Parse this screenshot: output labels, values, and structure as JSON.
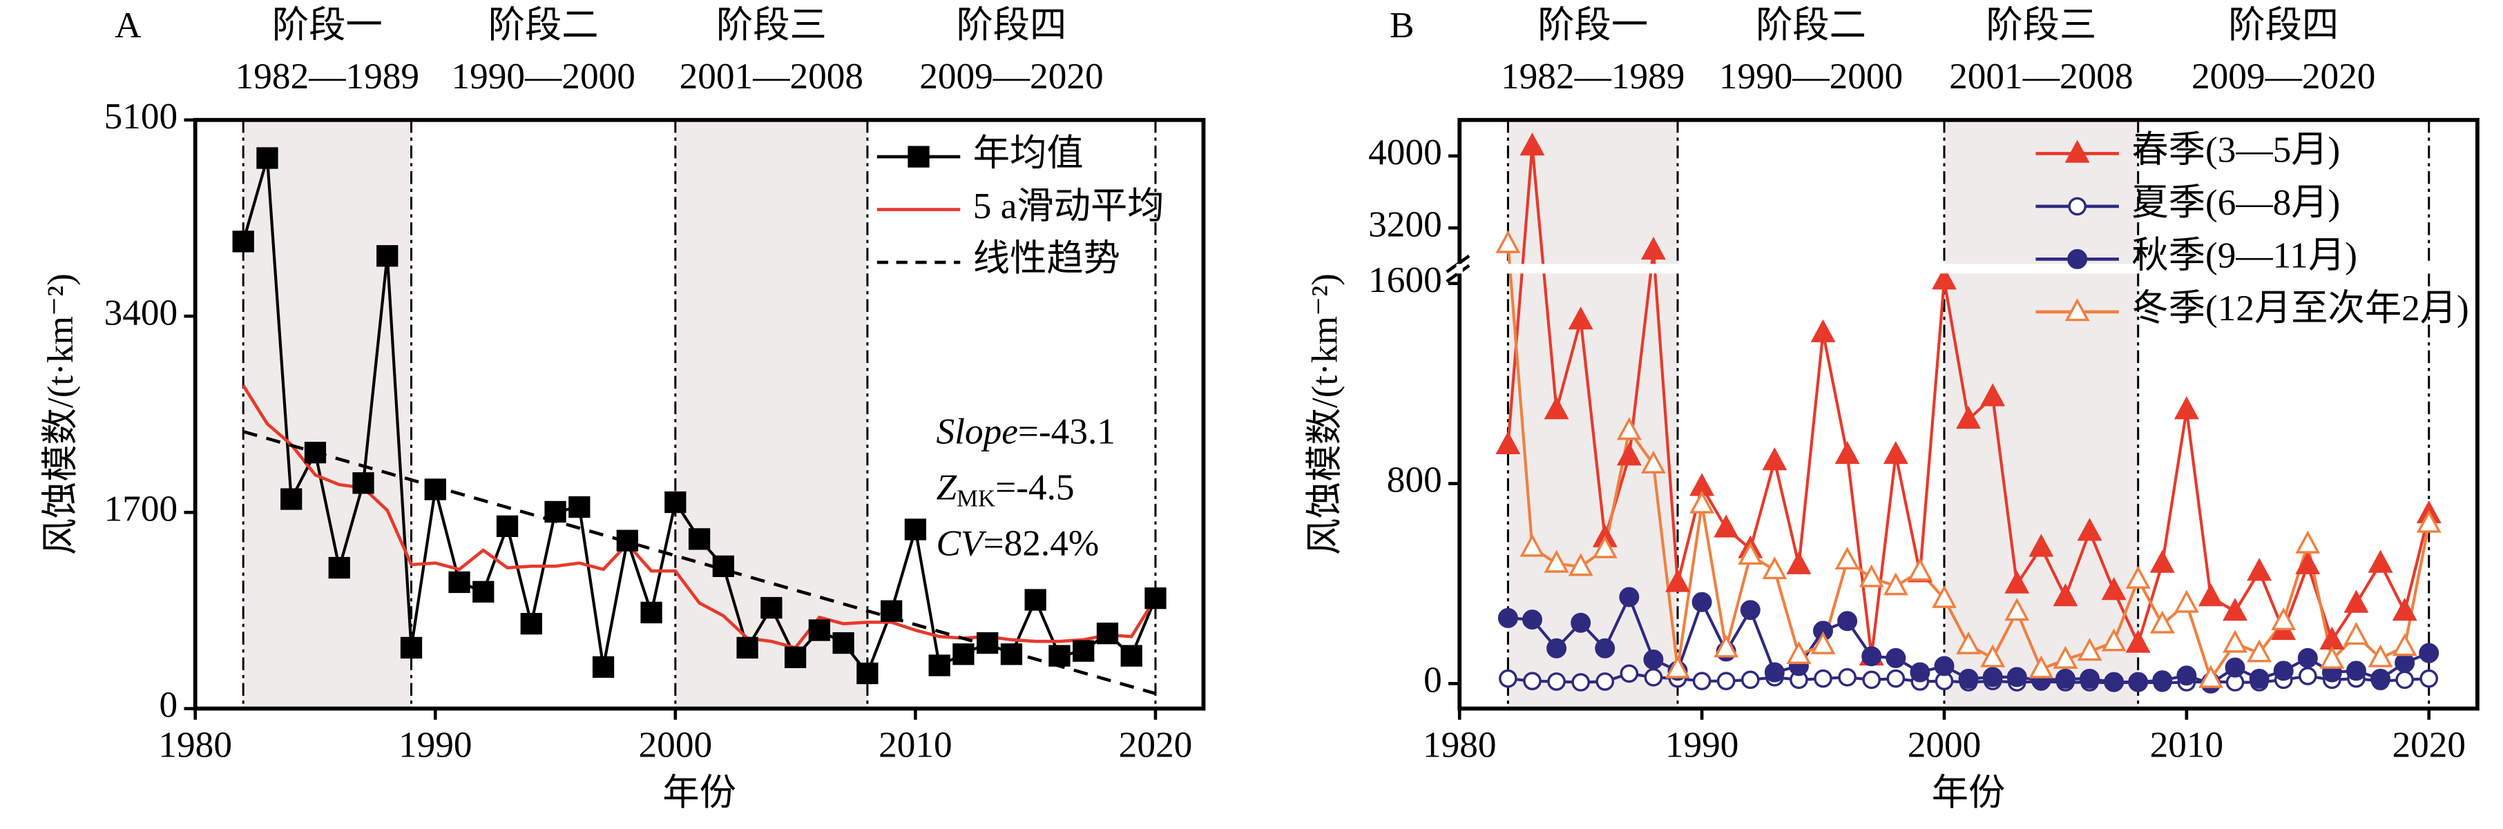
{
  "chart_data": [
    {
      "type": "line",
      "panel": "A",
      "ylabel": "风蚀模数/(t·km⁻²)",
      "xlabel": "年份",
      "xlim": [
        1980,
        2022
      ],
      "xticks": [
        1980,
        1990,
        2000,
        2010,
        2020
      ],
      "ylim": [
        0,
        5100
      ],
      "yticks": [
        0,
        1700,
        3400,
        5100
      ],
      "legend": "upper right",
      "stages": [
        {
          "name": "阶段一",
          "period": "1982—1989",
          "start": 1982,
          "end": 1989,
          "shaded": true
        },
        {
          "name": "阶段二",
          "period": "1990—2000",
          "start": 1989,
          "end": 2000,
          "shaded": false
        },
        {
          "name": "阶段三",
          "period": "2001—2008",
          "start": 2000,
          "end": 2008,
          "shaded": true
        },
        {
          "name": "阶段四",
          "period": "2009—2020",
          "start": 2008,
          "end": 2020,
          "shaded": false
        }
      ],
      "annotations": [
        {
          "text": "Slope",
          "suffix": "=-43.1"
        },
        {
          "text": "Z",
          "sub": "MK",
          "suffix": "=-4.5"
        },
        {
          "text": "CV",
          "suffix": "=82.4%"
        }
      ],
      "x": [
        1982,
        1983,
        1984,
        1985,
        1986,
        1987,
        1988,
        1989,
        1990,
        1991,
        1992,
        1993,
        1994,
        1995,
        1996,
        1997,
        1998,
        1999,
        2000,
        2001,
        2002,
        2003,
        2004,
        2005,
        2006,
        2007,
        2008,
        2009,
        2010,
        2011,
        2012,
        2013,
        2014,
        2015,
        2016,
        2017,
        2018,
        2019,
        2020
      ],
      "series": [
        {
          "name": "年均值",
          "color": "#000000",
          "marker": "square",
          "values": [
            4047,
            4770,
            1815,
            2218,
            1220,
            1954,
            3922,
            527,
            1899,
            1095,
            1012,
            1580,
            735,
            1705,
            1746,
            360,
            1455,
            832,
            1788,
            1469,
            1233,
            527,
            873,
            444,
            679,
            568,
            305,
            845,
            1552,
            374,
            471,
            568,
            471,
            942,
            457,
            499,
            651,
            457,
            956
          ]
        },
        {
          "name": "5 a滑动平均",
          "color": "#e8392b",
          "values": [
            2800,
            2467,
            2287,
            2024,
            1940,
            1913,
            1718,
            1247,
            1261,
            1206,
            1372,
            1220,
            1233,
            1233,
            1261,
            1206,
            1427,
            1192,
            1192,
            915,
            804,
            610,
            582,
            527,
            790,
            735,
            748,
            748,
            679,
            624,
            610,
            624,
            596,
            582,
            582,
            596,
            638,
            624,
            956
          ]
        },
        {
          "name": "线性趋势",
          "color": "#000000",
          "dash": true,
          "x": [
            1982,
            2020
          ],
          "values": [
            2400,
            130
          ]
        }
      ]
    },
    {
      "type": "line",
      "panel": "B",
      "ylabel": "风蚀模数/(t·km⁻²)",
      "xlabel": "年份",
      "xlim": [
        1980,
        2022
      ],
      "xticks": [
        1980,
        1990,
        2000,
        2010,
        2020
      ],
      "ylim": [
        -100,
        4400
      ],
      "ybreak": [
        1640,
        2800
      ],
      "yticks": [
        0,
        800,
        1600,
        3200,
        4000
      ],
      "legend": "upper right",
      "stages": [
        {
          "name": "阶段一",
          "period": "1982—1989",
          "start": 1982,
          "end": 1989,
          "shaded": true
        },
        {
          "name": "阶段二",
          "period": "1990—2000",
          "start": 1989,
          "end": 2000,
          "shaded": false
        },
        {
          "name": "阶段三",
          "period": "2001—2008",
          "start": 2000,
          "end": 2008,
          "shaded": true
        },
        {
          "name": "阶段四",
          "period": "2009—2020",
          "start": 2008,
          "end": 2020,
          "shaded": false
        }
      ],
      "x": [
        1982,
        1983,
        1984,
        1985,
        1986,
        1987,
        1988,
        1989,
        1990,
        1991,
        1992,
        1993,
        1994,
        1995,
        1996,
        1997,
        1998,
        1999,
        2000,
        2001,
        2002,
        2003,
        2004,
        2005,
        2006,
        2007,
        2008,
        2009,
        2010,
        2011,
        2012,
        2013,
        2014,
        2015,
        2016,
        2017,
        2018,
        2019,
        2020
      ],
      "series": [
        {
          "name": "春季(3—5月)",
          "color": "#e8392b",
          "marker": "triangle",
          "values": [
            954,
            4107,
            1094,
            1453,
            582,
            909,
            2950,
            403,
            787,
            621,
            538,
            890,
            474,
            1402,
            915,
            109,
            915,
            442,
            1613,
            1056,
            1146,
            397,
            544,
            346,
            608,
            371,
            160,
            480,
            1094,
            346,
            288,
            448,
            211,
            474,
            173,
            320,
            480,
            288,
            678
          ]
        },
        {
          "name": "夏季(6—8月)",
          "color": "#2e2a80",
          "marker": "circle-open",
          "values": [
            20,
            10,
            8,
            5,
            8,
            40,
            25,
            20,
            10,
            10,
            15,
            25,
            15,
            20,
            25,
            15,
            20,
            8,
            10,
            5,
            10,
            5,
            8,
            5,
            5,
            3,
            5,
            3,
            5,
            8,
            5,
            5,
            15,
            30,
            15,
            20,
            10,
            15,
            20
          ]
        },
        {
          "name": "秋季(9—11月)",
          "color": "#2e2a80",
          "marker": "circle",
          "values": [
            262,
            256,
            141,
            243,
            141,
            346,
            96,
            51,
            326,
            128,
            294,
            45,
            70,
            211,
            250,
            109,
            102,
            45,
            70,
            19,
            26,
            26,
            13,
            19,
            19,
            6,
            6,
            13,
            32,
            0,
            64,
            19,
            51,
            102,
            45,
            51,
            19,
            83,
            122
          ]
        },
        {
          "name": "冬季(12月至次年2月)",
          "color": "#f08040",
          "marker": "triangle-open",
          "values": [
            3022,
            544,
            480,
            467,
            538,
            1011,
            877,
            58,
            717,
            141,
            512,
            454,
            115,
            154,
            493,
            422,
            390,
            448,
            339,
            154,
            102,
            288,
            58,
            96,
            128,
            166,
            416,
            237,
            320,
            19,
            160,
            122,
            250,
            557,
            96,
            192,
            102,
            147,
            640
          ]
        }
      ]
    }
  ]
}
